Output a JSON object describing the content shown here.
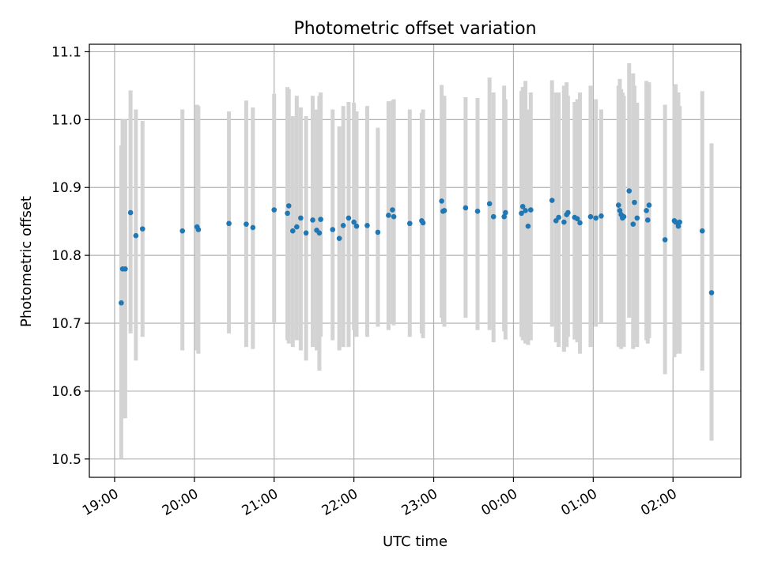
{
  "chart_data": {
    "type": "scatter",
    "title": "Photometric offset variation",
    "xlabel": "UTC time",
    "ylabel": "Photometric offset",
    "x_axis_type": "time",
    "x_ticks": [
      "19:00",
      "20:00",
      "21:00",
      "22:00",
      "23:00",
      "00:00",
      "01:00",
      "02:00"
    ],
    "xlim": [
      "18:41",
      "02:51"
    ],
    "ylim": [
      10.473,
      11.111
    ],
    "y_ticks": [
      10.5,
      10.6,
      10.7,
      10.8,
      10.9,
      11.0,
      11.1
    ],
    "grid": true,
    "colors": {
      "marker": "#1f77b4",
      "errorbar": "#d3d3d3",
      "grid": "#b0b0b0"
    },
    "series": [
      {
        "marker": "point",
        "x": [
          "19:05",
          "19:06",
          "19:08",
          "19:12",
          "19:16",
          "19:21",
          "19:51",
          "20:02",
          "20:03",
          "20:26",
          "20:39",
          "20:44",
          "21:00",
          "21:10",
          "21:11",
          "21:14",
          "21:17",
          "21:20",
          "21:24",
          "21:29",
          "21:32",
          "21:34",
          "21:35",
          "21:44",
          "21:49",
          "21:52",
          "21:56",
          "22:00",
          "22:02",
          "22:10",
          "22:18",
          "22:26",
          "22:29",
          "22:30",
          "22:42",
          "22:51",
          "22:52",
          "23:06",
          "23:07",
          "23:08",
          "23:24",
          "23:33",
          "23:42",
          "23:45",
          "23:53",
          "23:54",
          "00:06",
          "00:07",
          "00:09",
          "00:11",
          "00:13",
          "00:29",
          "00:32",
          "00:34",
          "00:38",
          "00:40",
          "00:41",
          "00:46",
          "00:48",
          "00:50",
          "00:58",
          "01:02",
          "01:06",
          "01:19",
          "01:20",
          "01:21",
          "01:22",
          "01:23",
          "01:27",
          "01:30",
          "01:31",
          "01:33",
          "01:40",
          "01:41",
          "01:42",
          "01:54",
          "02:01",
          "02:02",
          "02:04",
          "02:05",
          "02:22",
          "02:29"
        ],
        "y": [
          10.73,
          10.78,
          10.78,
          10.863,
          10.829,
          10.839,
          10.836,
          10.842,
          10.838,
          10.847,
          10.846,
          10.841,
          10.867,
          10.862,
          10.873,
          10.836,
          10.842,
          10.855,
          10.833,
          10.852,
          10.837,
          10.833,
          10.853,
          10.838,
          10.825,
          10.844,
          10.855,
          10.849,
          10.843,
          10.844,
          10.834,
          10.859,
          10.867,
          10.857,
          10.847,
          10.851,
          10.848,
          10.88,
          10.865,
          10.866,
          10.87,
          10.865,
          10.876,
          10.857,
          10.857,
          10.863,
          10.862,
          10.872,
          10.866,
          10.843,
          10.867,
          10.881,
          10.851,
          10.856,
          10.849,
          10.86,
          10.863,
          10.856,
          10.854,
          10.848,
          10.857,
          10.855,
          10.858,
          10.874,
          10.866,
          10.86,
          10.855,
          10.857,
          10.895,
          10.846,
          10.878,
          10.855,
          10.866,
          10.852,
          10.874,
          10.823,
          10.851,
          10.849,
          10.843,
          10.849,
          10.836,
          10.745
        ],
        "err_low": [
          10.5,
          10.56,
          10.56,
          10.685,
          10.645,
          10.68,
          10.66,
          10.66,
          10.655,
          10.685,
          10.665,
          10.662,
          10.7,
          10.675,
          10.67,
          10.665,
          10.675,
          10.66,
          10.645,
          10.665,
          10.66,
          10.63,
          10.68,
          10.675,
          10.66,
          10.665,
          10.665,
          10.69,
          10.68,
          10.68,
          10.695,
          10.69,
          10.7,
          10.697,
          10.68,
          10.685,
          10.678,
          10.708,
          10.7,
          10.695,
          10.708,
          10.69,
          10.69,
          10.672,
          10.688,
          10.676,
          10.68,
          10.675,
          10.67,
          10.668,
          10.675,
          10.695,
          10.672,
          10.665,
          10.658,
          10.665,
          10.68,
          10.676,
          10.672,
          10.655,
          10.665,
          10.695,
          10.7,
          10.665,
          10.68,
          10.662,
          10.67,
          10.665,
          10.708,
          10.662,
          10.672,
          10.665,
          10.675,
          10.67,
          10.678,
          10.625,
          10.65,
          10.655,
          10.66,
          10.655,
          10.63,
          10.527
        ],
        "err_high": [
          10.962,
          11.0,
          11.0,
          11.043,
          11.015,
          10.998,
          11.015,
          11.022,
          11.02,
          11.012,
          11.028,
          11.018,
          11.038,
          11.048,
          11.045,
          11.005,
          11.035,
          11.018,
          11.005,
          11.035,
          11.015,
          11.035,
          11.04,
          11.015,
          10.99,
          11.02,
          11.026,
          11.025,
          11.012,
          11.02,
          10.988,
          11.027,
          11.028,
          11.03,
          11.015,
          11.01,
          11.015,
          11.051,
          11.035,
          11.035,
          11.033,
          11.032,
          11.062,
          11.04,
          11.05,
          11.03,
          11.042,
          11.048,
          11.057,
          11.015,
          11.04,
          11.058,
          11.04,
          11.04,
          11.05,
          11.055,
          11.035,
          11.026,
          11.03,
          11.04,
          11.05,
          11.03,
          11.015,
          11.05,
          11.06,
          11.045,
          11.04,
          11.035,
          11.083,
          11.068,
          11.05,
          11.025,
          11.057,
          11.045,
          11.055,
          11.022,
          11.05,
          11.052,
          11.04,
          11.02,
          11.042,
          10.965
        ]
      }
    ]
  }
}
